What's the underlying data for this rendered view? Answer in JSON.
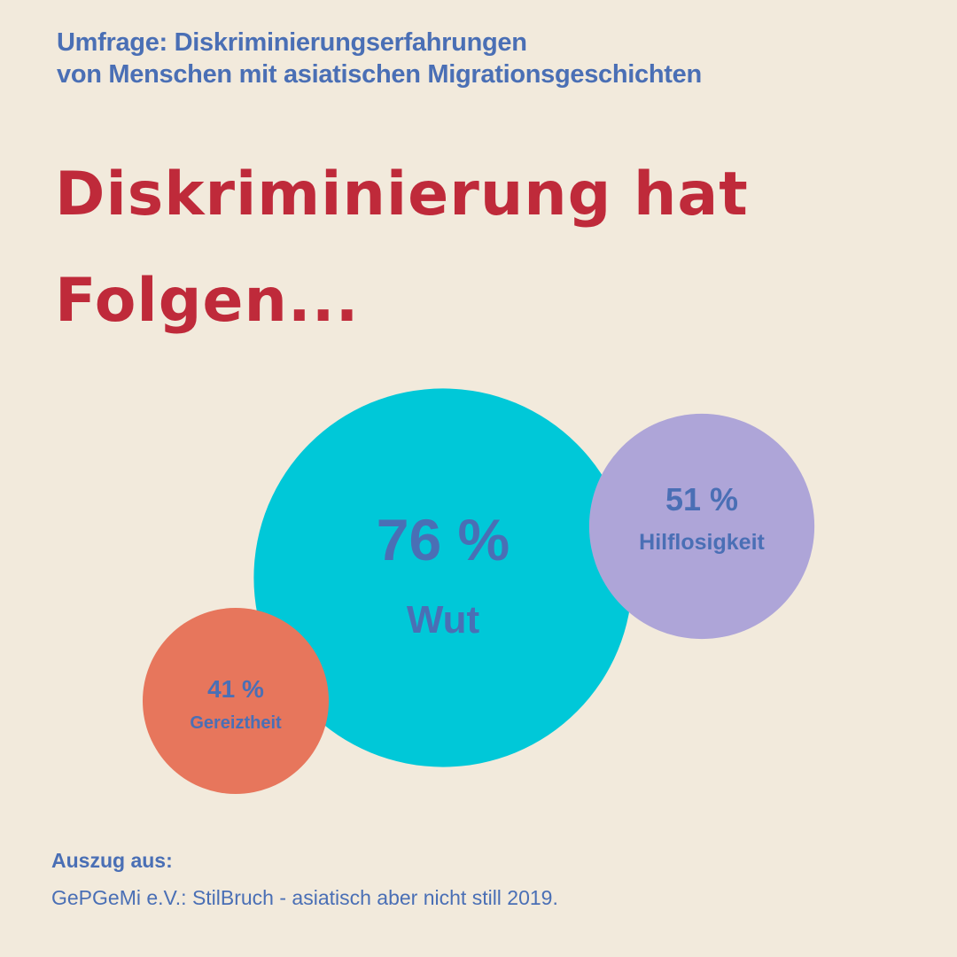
{
  "header": {
    "subtitle_line1": "Umfrage: Diskriminierungserfahrungen",
    "subtitle_line2": "von Menschen mit asiatischen Migrationsgeschichten",
    "headline_line1": "Diskriminierung hat",
    "headline_line2": "Folgen..."
  },
  "chart_data": {
    "type": "bubble",
    "unit": "%",
    "series": [
      {
        "label": "Wut",
        "value": 76,
        "value_text": "76 %",
        "color": "#00c8d8"
      },
      {
        "label": "Hilflosigkeit",
        "value": 51,
        "value_text": "51 %",
        "color": "#aea5d8"
      },
      {
        "label": "Gereiztheit",
        "value": 41,
        "value_text": "41 %",
        "color": "#e7765c"
      }
    ]
  },
  "colors": {
    "background": "#f2eadc",
    "accent_blue": "#4a6fb5",
    "headline_red": "#bf2a3a"
  },
  "source": {
    "heading": "Auszug aus:",
    "text": "GePGeMi e.V.: StilBruch - asiatisch aber nicht still 2019."
  }
}
